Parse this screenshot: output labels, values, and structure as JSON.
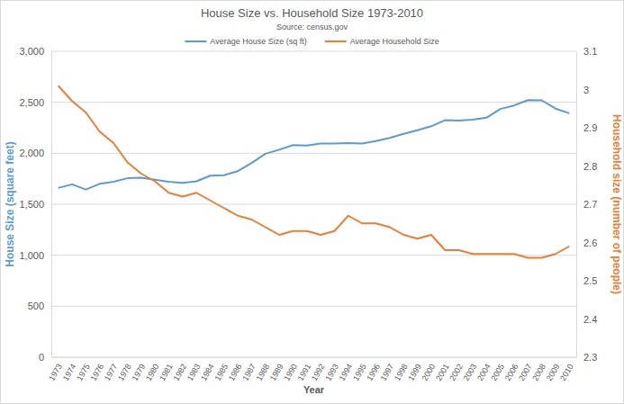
{
  "chart_data": {
    "type": "line",
    "title": "House Size vs. Household Size 1973-2010",
    "subtitle": "Source: census.gov",
    "xlabel": "Year",
    "ylabel": "House Size (square feet)",
    "y2label": "Household size (number of people)",
    "categories": [
      "1973",
      "1974",
      "1975",
      "1976",
      "1977",
      "1978",
      "1979",
      "1980",
      "1981",
      "1982",
      "1983",
      "1984",
      "1985",
      "1986",
      "1987",
      "1988",
      "1989",
      "1990",
      "1991",
      "1992",
      "1993",
      "1994",
      "1995",
      "1996",
      "1997",
      "1998",
      "1999",
      "2000",
      "2001",
      "2002",
      "2003",
      "2004",
      "2005",
      "2006",
      "2007",
      "2008",
      "2009",
      "2010"
    ],
    "series": [
      {
        "name": "Average House Size (sq ft)",
        "color": "#5b9bd5",
        "values": [
          1660,
          1695,
          1645,
          1700,
          1720,
          1755,
          1760,
          1740,
          1720,
          1710,
          1725,
          1780,
          1785,
          1825,
          1905,
          1995,
          2035,
          2080,
          2075,
          2095,
          2095,
          2100,
          2095,
          2120,
          2150,
          2190,
          2225,
          2265,
          2324,
          2320,
          2330,
          2349,
          2434,
          2469,
          2521,
          2519,
          2438,
          2392
        ]
      },
      {
        "name": "Average Household Size",
        "color": "#ed7d31",
        "axis": "y2",
        "values": [
          3.01,
          2.97,
          2.94,
          2.89,
          2.86,
          2.81,
          2.78,
          2.76,
          2.73,
          2.72,
          2.73,
          2.71,
          2.69,
          2.67,
          2.66,
          2.64,
          2.62,
          2.63,
          2.63,
          2.62,
          2.63,
          2.67,
          2.65,
          2.65,
          2.64,
          2.62,
          2.61,
          2.62,
          2.58,
          2.58,
          2.57,
          2.57,
          2.57,
          2.57,
          2.56,
          2.56,
          2.57,
          2.59
        ]
      }
    ],
    "ylim": [
      0,
      3000
    ],
    "yticks": [
      0,
      500,
      {
        "value": 1000,
        "label": "1,000"
      },
      {
        "value": 1500,
        "label": "1,500"
      },
      {
        "value": 2000,
        "label": "2,000"
      },
      {
        "value": 2500,
        "label": "2,500"
      },
      {
        "value": 3000,
        "label": "3,000"
      }
    ],
    "y2lim": [
      2.3,
      3.1
    ],
    "y2ticks": [
      2.3,
      2.4,
      2.5,
      2.6,
      2.7,
      2.8,
      2.9,
      3,
      3.1
    ],
    "grid": true,
    "legend": "top"
  }
}
